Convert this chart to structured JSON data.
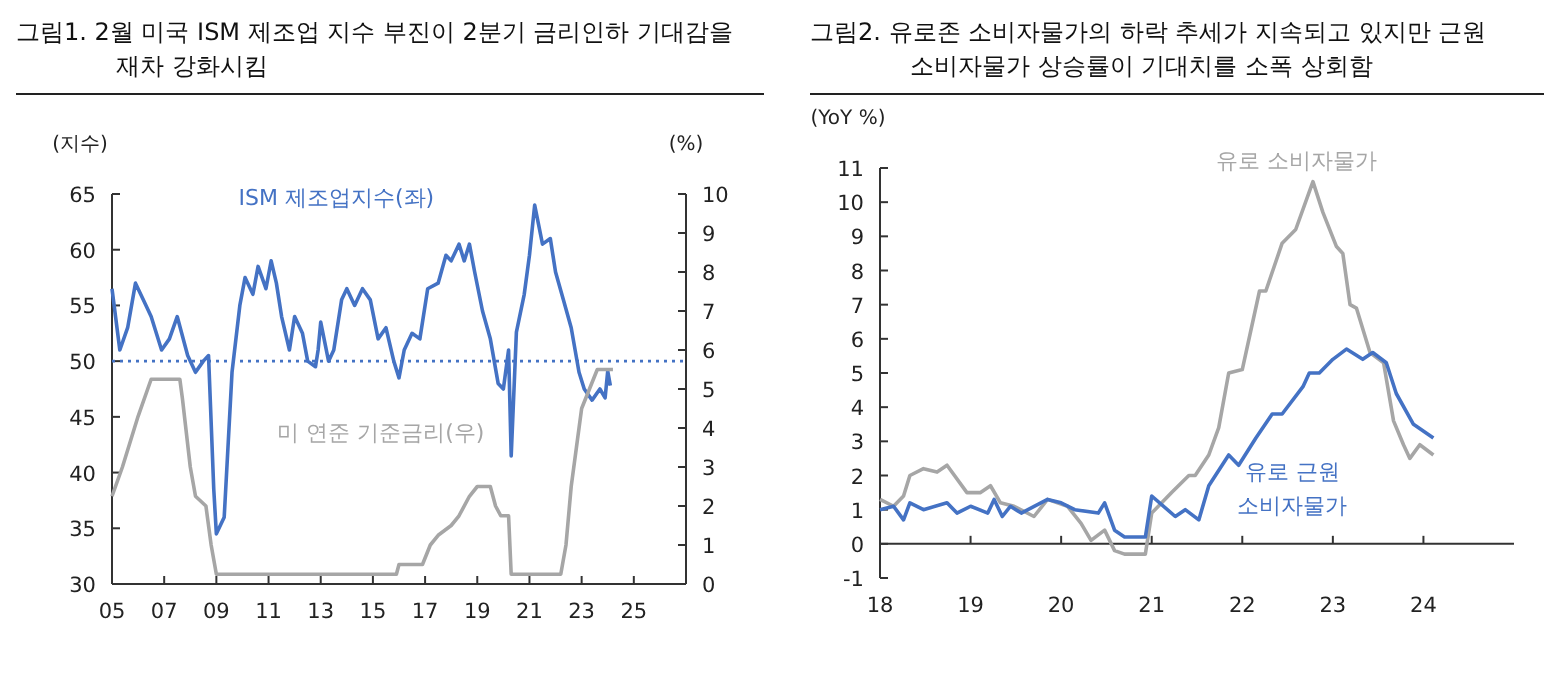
{
  "chart_data": [
    {
      "type": "line",
      "title": "그림1.  2월  미국  ISM  제조업  지수  부진이  2분기  금리인하 기대감을 재차 강화시킴",
      "ylabel": "(지수)",
      "y2label": "(%)",
      "xlim": [
        2005,
        2027
      ],
      "xticks": [
        {
          "value": 2005,
          "label": "05"
        },
        {
          "value": 2007,
          "label": "07"
        },
        {
          "value": 2009,
          "label": "09"
        },
        {
          "value": 2011,
          "label": "11"
        },
        {
          "value": 2013,
          "label": "13"
        },
        {
          "value": 2015,
          "label": "15"
        },
        {
          "value": 2017,
          "label": "17"
        },
        {
          "value": 2019,
          "label": "19"
        },
        {
          "value": 2021,
          "label": "21"
        },
        {
          "value": 2023,
          "label": "23"
        },
        {
          "value": 2025,
          "label": "25"
        }
      ],
      "ylim": [
        30,
        65
      ],
      "yticks": [
        30,
        35,
        40,
        45,
        50,
        55,
        60,
        65
      ],
      "y2lim": [
        0,
        10
      ],
      "y2ticks": [
        0,
        1,
        2,
        3,
        4,
        5,
        6,
        7,
        8,
        9,
        10
      ],
      "ref_lines": [
        {
          "axis": "y",
          "value": 50,
          "color": "#4472c4",
          "line_style": "dotted"
        }
      ],
      "series": [
        {
          "name": "ISM 제조업지수(좌)",
          "color": "#4472c4",
          "x": [
            2005.0,
            2005.3,
            2005.6,
            2005.9,
            2006.2,
            2006.5,
            2006.9,
            2007.2,
            2007.5,
            2007.9,
            2008.2,
            2008.5,
            2008.7,
            2008.9,
            2009.0,
            2009.3,
            2009.6,
            2009.9,
            2010.1,
            2010.4,
            2010.6,
            2010.9,
            2011.1,
            2011.3,
            2011.5,
            2011.8,
            2012.0,
            2012.3,
            2012.5,
            2012.8,
            2012.9,
            2013.0,
            2013.3,
            2013.5,
            2013.8,
            2014.0,
            2014.3,
            2014.6,
            2014.9,
            2015.2,
            2015.5,
            2015.8,
            2016.0,
            2016.2,
            2016.5,
            2016.8,
            2017.1,
            2017.5,
            2017.8,
            2018.0,
            2018.3,
            2018.5,
            2018.7,
            2018.9,
            2019.2,
            2019.5,
            2019.8,
            2020.0,
            2020.2,
            2020.3,
            2020.5,
            2020.8,
            2021.0,
            2021.2,
            2021.5,
            2021.8,
            2022.0,
            2022.3,
            2022.6,
            2022.9,
            2023.1,
            2023.4,
            2023.7,
            2023.9,
            2024.0,
            2024.1
          ],
          "values": [
            56.5,
            51,
            53,
            57,
            55.5,
            54,
            51,
            52,
            54,
            50.5,
            49,
            50,
            50.5,
            38.5,
            34.5,
            36,
            49,
            55,
            57.5,
            56,
            58.5,
            56.5,
            59,
            57,
            54,
            51,
            54,
            52.5,
            50,
            49.5,
            51,
            53.5,
            50,
            51,
            55.5,
            56.5,
            55,
            56.5,
            55.5,
            52,
            53,
            50,
            48.5,
            51,
            52.5,
            52,
            56.5,
            57,
            59.5,
            59,
            60.5,
            59,
            60.5,
            58,
            54.5,
            52,
            48,
            47.5,
            51,
            41.5,
            52.6,
            56,
            59.5,
            64,
            60.5,
            61,
            58,
            55.5,
            53,
            49,
            47.5,
            46.5,
            47.5,
            46.7,
            49.1,
            47.8
          ]
        },
        {
          "name": "미 연준 기준금리(우)",
          "color": "#a6a6a6",
          "axis": "y2",
          "x": [
            2005.0,
            2005.4,
            2006.0,
            2006.5,
            2007.6,
            2007.7,
            2008.0,
            2008.2,
            2008.6,
            2008.8,
            2009.0,
            2015.9,
            2016.0,
            2016.9,
            2017.2,
            2017.5,
            2018.0,
            2018.3,
            2018.7,
            2019.0,
            2019.5,
            2019.7,
            2019.9,
            2020.2,
            2020.3,
            2022.2,
            2022.4,
            2022.6,
            2022.8,
            2023.0,
            2023.3,
            2023.6,
            2024.2
          ],
          "values": [
            2.25,
            3.0,
            4.3,
            5.25,
            5.25,
            4.75,
            3.0,
            2.25,
            2.0,
            1.0,
            0.25,
            0.25,
            0.5,
            0.5,
            1.0,
            1.25,
            1.5,
            1.75,
            2.25,
            2.5,
            2.5,
            2.0,
            1.75,
            1.75,
            0.25,
            0.25,
            1.0,
            2.5,
            3.5,
            4.5,
            5.0,
            5.5,
            5.5
          ]
        }
      ]
    },
    {
      "type": "line",
      "title": "그림2.  유로존  소비자물가의  하락  추세가  지속되고  있지만  근원 소비자물가 상승률이 기대치를 소폭 상회함",
      "ylabel": "(YoY %)",
      "xlim": [
        2018,
        2025
      ],
      "xticks": [
        {
          "value": 2018,
          "label": "18"
        },
        {
          "value": 2019,
          "label": "19"
        },
        {
          "value": 2020,
          "label": "20"
        },
        {
          "value": 2021,
          "label": "21"
        },
        {
          "value": 2022,
          "label": "22"
        },
        {
          "value": 2023,
          "label": "23"
        },
        {
          "value": 2024,
          "label": "24"
        }
      ],
      "ylim": [
        -1,
        11
      ],
      "yticks": [
        -1,
        0,
        1,
        2,
        3,
        4,
        5,
        6,
        7,
        8,
        9,
        10,
        11
      ],
      "series": [
        {
          "name": "유로 소비자물가",
          "color": "#a6a6a6",
          "x": [
            2018.0,
            2018.15,
            2018.26,
            2018.33,
            2018.48,
            2018.63,
            2018.74,
            2018.96,
            2019.11,
            2019.22,
            2019.33,
            2019.48,
            2019.7,
            2019.85,
            2020.07,
            2020.22,
            2020.33,
            2020.48,
            2020.59,
            2020.7,
            2020.93,
            2021.0,
            2021.22,
            2021.41,
            2021.48,
            2021.63,
            2021.74,
            2021.85,
            2022.0,
            2022.19,
            2022.26,
            2022.44,
            2022.59,
            2022.78,
            2022.89,
            2023.04,
            2023.11,
            2023.19,
            2023.26,
            2023.41,
            2023.56,
            2023.67,
            2023.78,
            2023.85,
            2023.96,
            2024.11
          ],
          "values": [
            1.3,
            1.1,
            1.4,
            2.0,
            2.2,
            2.1,
            2.3,
            1.5,
            1.5,
            1.7,
            1.2,
            1.1,
            0.8,
            1.3,
            1.1,
            0.6,
            0.1,
            0.4,
            -0.2,
            -0.3,
            -0.3,
            0.9,
            1.5,
            2.0,
            2.0,
            2.6,
            3.4,
            5.0,
            5.1,
            7.4,
            7.4,
            8.8,
            9.2,
            10.6,
            9.7,
            8.7,
            8.5,
            7.0,
            6.9,
            5.6,
            5.3,
            3.6,
            2.9,
            2.5,
            2.9,
            2.6
          ]
        },
        {
          "name": "유로 근원 소비자물가",
          "color": "#4472c4",
          "x": [
            2018.0,
            2018.15,
            2018.26,
            2018.33,
            2018.48,
            2018.74,
            2018.85,
            2019.0,
            2019.19,
            2019.26,
            2019.35,
            2019.44,
            2019.56,
            2019.85,
            2020.0,
            2020.15,
            2020.41,
            2020.48,
            2020.59,
            2020.7,
            2020.93,
            2021.0,
            2021.26,
            2021.37,
            2021.52,
            2021.63,
            2021.85,
            2021.96,
            2022.15,
            2022.33,
            2022.44,
            2022.67,
            2022.74,
            2022.85,
            2023.0,
            2023.15,
            2023.33,
            2023.44,
            2023.59,
            2023.7,
            2023.89,
            2024.11
          ],
          "values": [
            1.0,
            1.1,
            0.7,
            1.2,
            1.0,
            1.2,
            0.9,
            1.1,
            0.9,
            1.3,
            0.8,
            1.1,
            0.9,
            1.3,
            1.2,
            1.0,
            0.9,
            1.2,
            0.4,
            0.2,
            0.2,
            1.4,
            0.8,
            1.0,
            0.7,
            1.7,
            2.6,
            2.3,
            3.1,
            3.8,
            3.8,
            4.6,
            5.0,
            5.0,
            5.4,
            5.7,
            5.4,
            5.6,
            5.3,
            4.4,
            3.5,
            3.1
          ]
        }
      ]
    }
  ]
}
